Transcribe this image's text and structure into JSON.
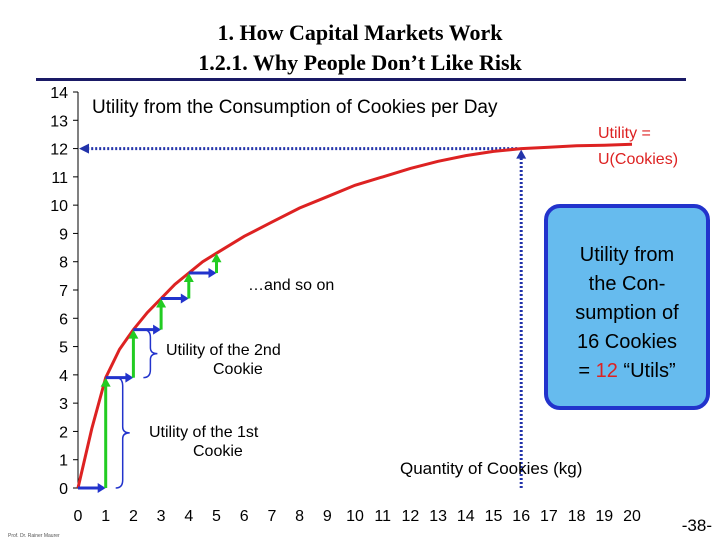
{
  "slide": {
    "title_line1": "1. How Capital Markets Work",
    "title_line2": "1.2.1. Why People Don’t Like Risk",
    "footer": "Prof. Dr. Rainer Maurer",
    "page_number": "-38-"
  },
  "chart_data": {
    "type": "line",
    "title": "Utility from the Consumption of Cookies per Day",
    "xlabel": "Quantity of Cookies (kg)",
    "ylabel": "",
    "xlim": [
      0,
      20
    ],
    "ylim": [
      0,
      14
    ],
    "x_ticks": [
      "0",
      "1",
      "2",
      "3",
      "4",
      "5",
      "6",
      "7",
      "8",
      "9",
      "10",
      "11",
      "12",
      "13",
      "14",
      "15",
      "16",
      "17",
      "18",
      "19",
      "20"
    ],
    "y_ticks": [
      "0",
      "1",
      "2",
      "3",
      "4",
      "5",
      "6",
      "7",
      "8",
      "9",
      "10",
      "11",
      "12",
      "13",
      "14"
    ],
    "series": [
      {
        "name": "Utility = U(Cookies)",
        "color": "#dd2222",
        "x": [
          0,
          0.5,
          1,
          1.5,
          2,
          2.5,
          3,
          3.5,
          4,
          4.5,
          5,
          6,
          7,
          8,
          9,
          10,
          11,
          12,
          13,
          14,
          15,
          16,
          17,
          18,
          19,
          20
        ],
        "y": [
          0,
          2.1,
          3.9,
          4.9,
          5.6,
          6.2,
          6.7,
          7.2,
          7.6,
          8.0,
          8.3,
          8.9,
          9.4,
          9.9,
          10.3,
          10.7,
          11.0,
          11.3,
          11.55,
          11.75,
          11.9,
          12.0,
          12.05,
          12.1,
          12.12,
          12.15
        ]
      }
    ],
    "increments": {
      "color_steps": "#2233cc",
      "color_gains": "#22cc22",
      "points": [
        {
          "x": 0,
          "y": 0
        },
        {
          "x": 1,
          "y": 3.9
        },
        {
          "x": 2,
          "y": 5.6
        },
        {
          "x": 3,
          "y": 6.7
        },
        {
          "x": 4,
          "y": 7.6
        },
        {
          "x": 5,
          "y": 8.3
        }
      ]
    },
    "reference": {
      "x": 16,
      "y": 12,
      "color": "#2233aa"
    },
    "annotations": {
      "curve_label_line1": "Utility =",
      "curve_label_line2": "U(Cookies)",
      "and_so_on": "…and so on",
      "second_line1": "Utility of the 2nd",
      "second_line2": "Cookie",
      "first_line1": "Utility of the 1st",
      "first_line2": "Cookie",
      "box_line1": "Utility from",
      "box_line2": "the Con-",
      "box_line3": "sumption of",
      "box_line4": "16 Cookies",
      "box_line5_prefix": "= ",
      "box_line5_value": "12",
      "box_line5_suffix": " “Utils”",
      "box_border_color": "#2233cc",
      "box_fill_color": "#66bbee",
      "value_highlight_color": "#dd2222"
    }
  }
}
